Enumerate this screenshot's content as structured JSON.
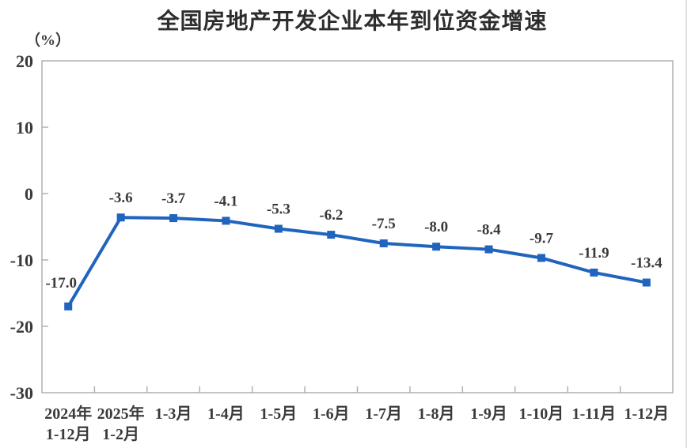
{
  "chart_data": {
    "type": "line",
    "title": "全国房地产开发企业本年到位资金增速",
    "ylabel_unit": "（%）",
    "categories": [
      [
        "2024年",
        "1-12月"
      ],
      [
        "2025年",
        "1-2月"
      ],
      [
        "1-3月"
      ],
      [
        "1-4月"
      ],
      [
        "1-5月"
      ],
      [
        "1-6月"
      ],
      [
        "1-7月"
      ],
      [
        "1-8月"
      ],
      [
        "1-9月"
      ],
      [
        "1-10月"
      ],
      [
        "1-11月"
      ],
      [
        "1-12月"
      ]
    ],
    "values": [
      -17.0,
      -3.6,
      -3.7,
      -4.1,
      -5.3,
      -6.2,
      -7.5,
      -8.0,
      -8.4,
      -9.7,
      -11.9,
      -13.4
    ],
    "data_labels": [
      "-17.0",
      "-3.6",
      "-3.7",
      "-4.1",
      "-5.3",
      "-6.2",
      "-7.5",
      "-8.0",
      "-8.4",
      "-9.7",
      "-11.9",
      "-13.4"
    ],
    "y_ticks": [
      20,
      10,
      0,
      -10,
      -20,
      -30
    ],
    "ylim": [
      -30,
      20
    ],
    "grid": false,
    "legend": "none",
    "marker": "square",
    "colors": {
      "line": "#2064BE",
      "axis": "#ababab",
      "text": "#3a3a3a",
      "title": "#2d2d2d",
      "edge_line": "#d6d6d6"
    }
  }
}
